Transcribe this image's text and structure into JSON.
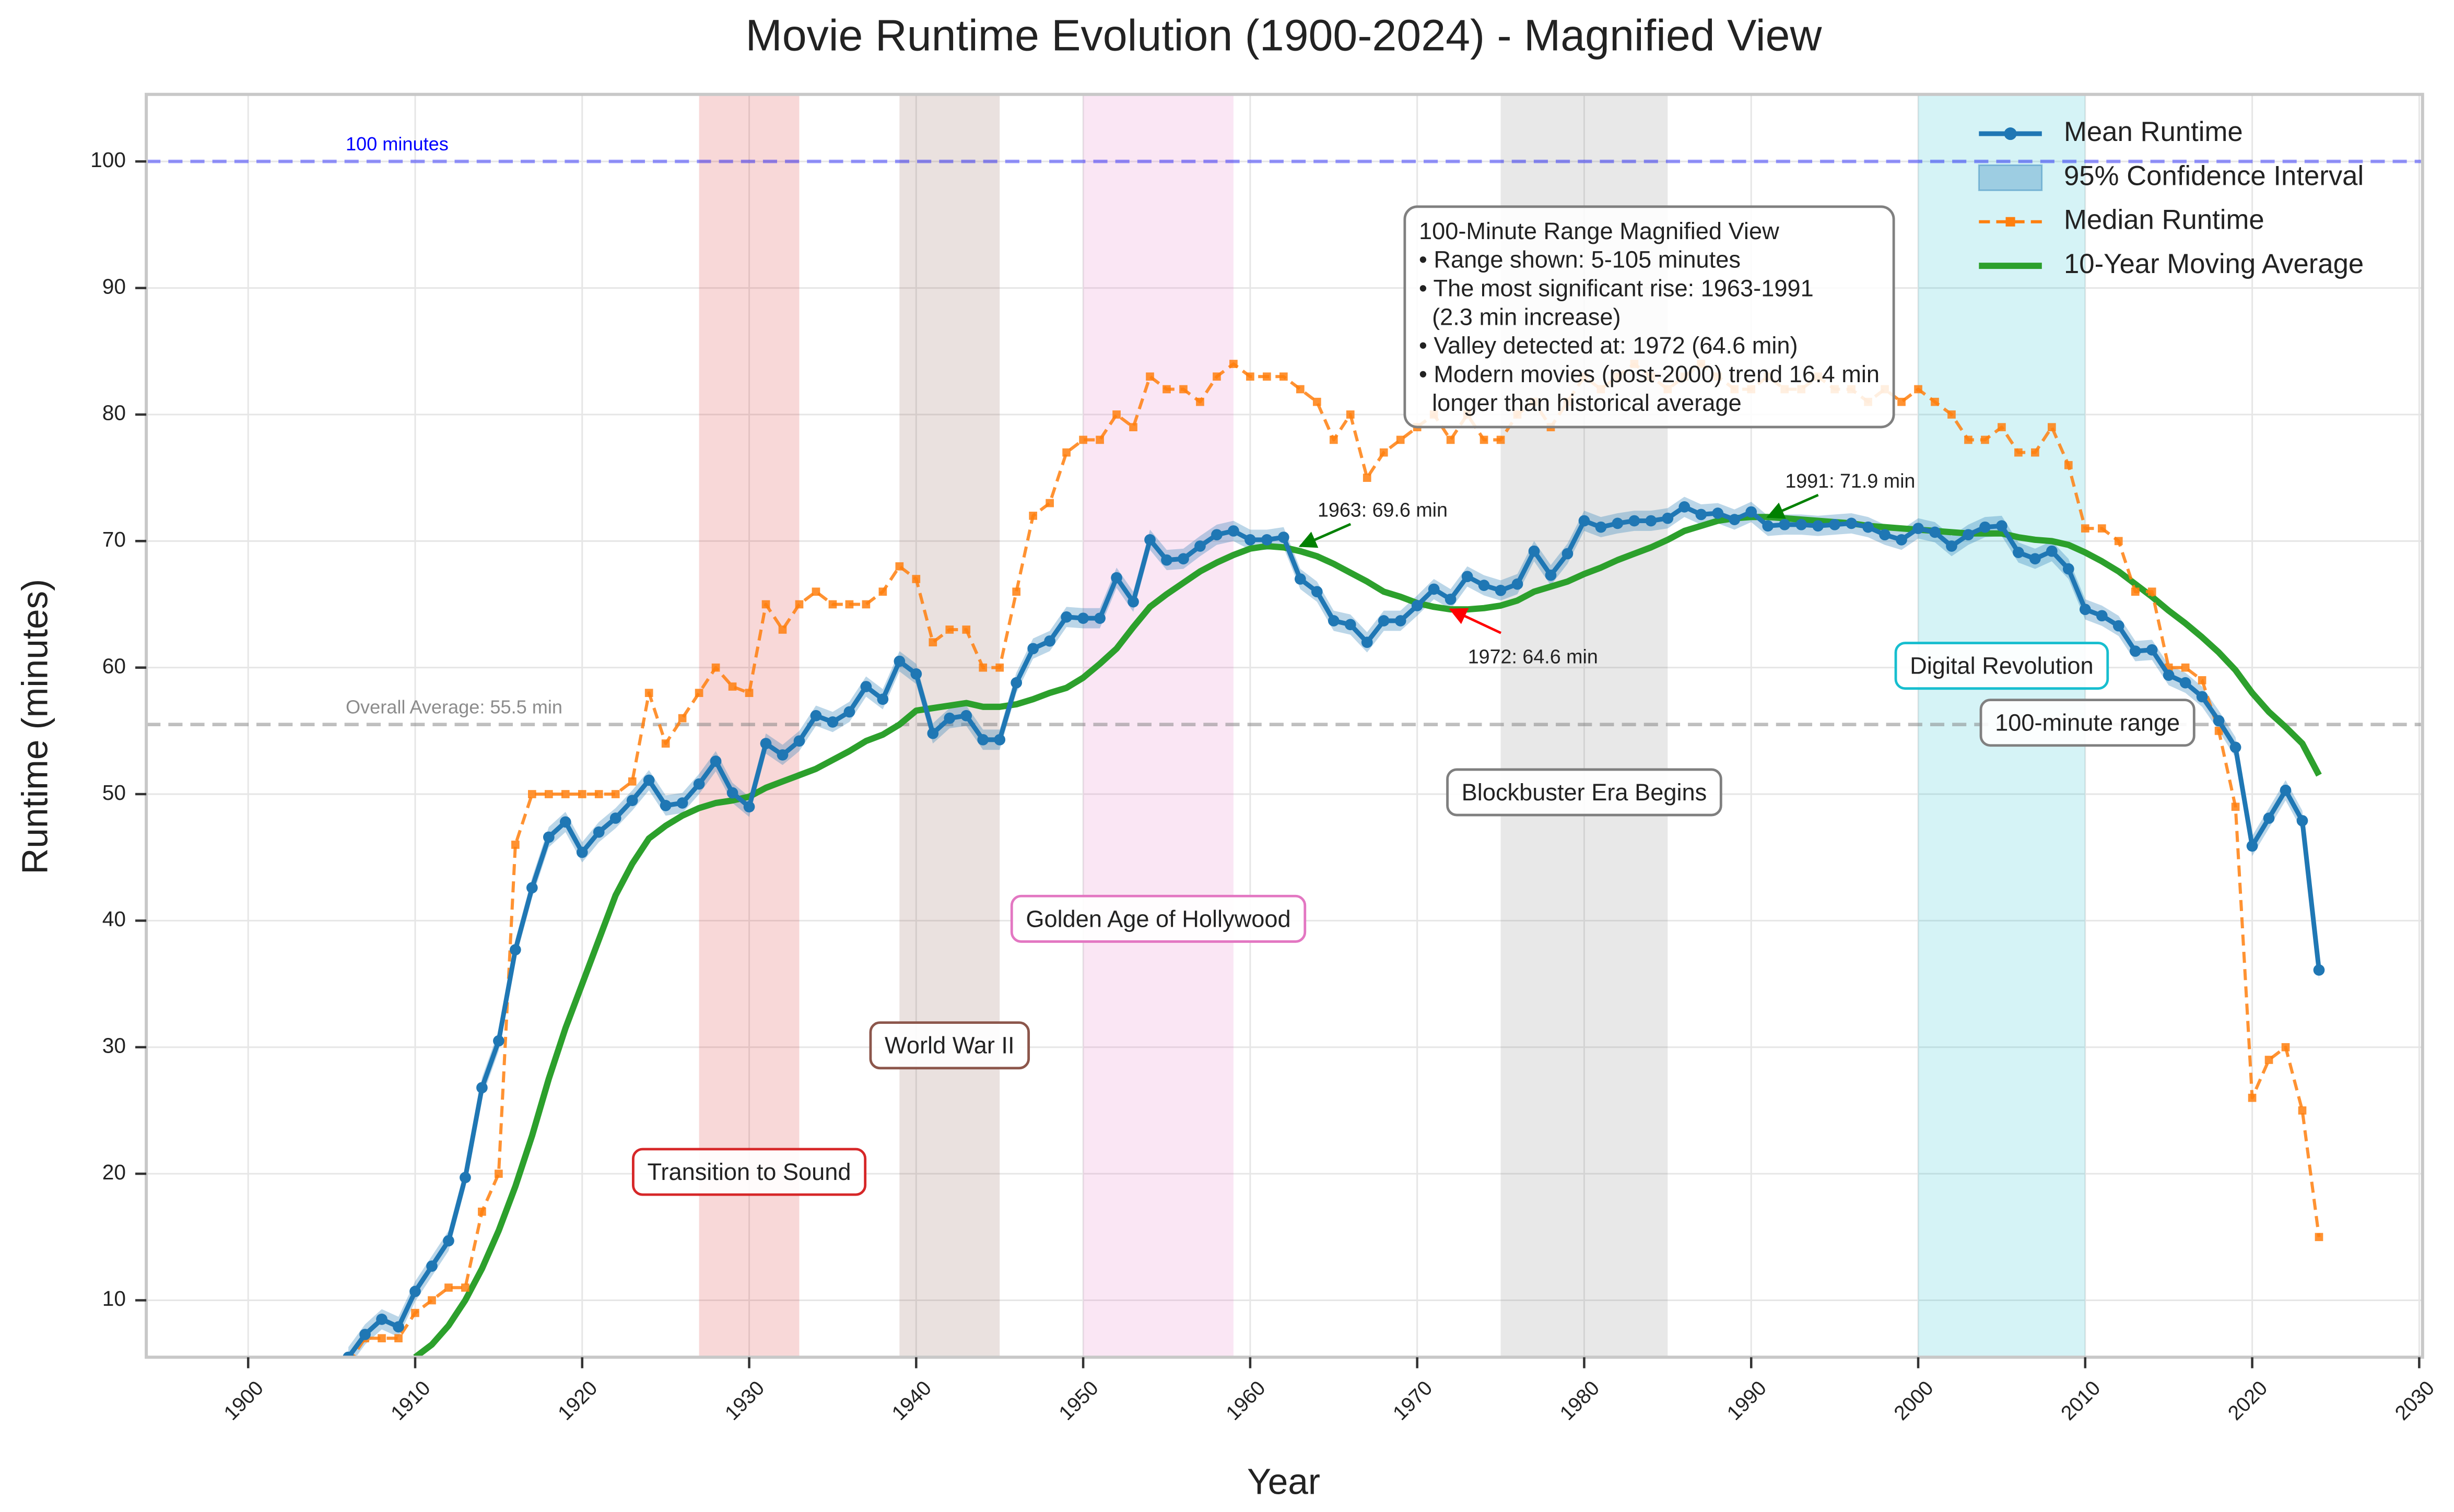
{
  "chart_data": {
    "type": "line",
    "title": "Movie Runtime Evolution (1900-2024) - Magnified View",
    "x_label": "Year",
    "y_label": "Runtime (minutes)",
    "xlim": [
      1893.9,
      2030.2
    ],
    "ylim": [
      5.5,
      105.3
    ],
    "xticks": [
      1900,
      1910,
      1920,
      1930,
      1940,
      1950,
      1960,
      1970,
      1980,
      1990,
      2000,
      2010,
      2020,
      2030
    ],
    "yticks": [
      10,
      20,
      30,
      40,
      50,
      60,
      70,
      80,
      90,
      100
    ],
    "grid": true,
    "legend": "upper right",
    "x": [
      1906,
      1907,
      1908,
      1909,
      1910,
      1911,
      1912,
      1913,
      1914,
      1915,
      1916,
      1917,
      1918,
      1919,
      1920,
      1921,
      1922,
      1923,
      1924,
      1925,
      1926,
      1927,
      1928,
      1929,
      1930,
      1931,
      1932,
      1933,
      1934,
      1935,
      1936,
      1937,
      1938,
      1939,
      1940,
      1941,
      1942,
      1943,
      1944,
      1945,
      1946,
      1947,
      1948,
      1949,
      1950,
      1951,
      1952,
      1953,
      1954,
      1955,
      1956,
      1957,
      1958,
      1959,
      1960,
      1961,
      1962,
      1963,
      1964,
      1965,
      1966,
      1967,
      1968,
      1969,
      1970,
      1971,
      1972,
      1973,
      1974,
      1975,
      1976,
      1977,
      1978,
      1979,
      1980,
      1981,
      1982,
      1983,
      1984,
      1985,
      1986,
      1987,
      1988,
      1989,
      1990,
      1991,
      1992,
      1993,
      1994,
      1995,
      1996,
      1997,
      1998,
      1999,
      2000,
      2001,
      2002,
      2003,
      2004,
      2005,
      2006,
      2007,
      2008,
      2009,
      2010,
      2011,
      2012,
      2013,
      2014,
      2015,
      2016,
      2017,
      2018,
      2019,
      2020,
      2021,
      2022,
      2023,
      2024
    ],
    "series": [
      {
        "name": "Mean Runtime",
        "color": "#1f77b4",
        "style": "line-circle",
        "values": [
          5.5,
          7.3,
          8.5,
          7.9,
          10.7,
          12.7,
          14.7,
          19.7,
          26.8,
          30.5,
          37.7,
          42.6,
          46.6,
          47.8,
          45.4,
          47.0,
          48.1,
          49.5,
          51.1,
          49.1,
          49.3,
          50.8,
          52.6,
          50.1,
          49.0,
          54.0,
          53.1,
          54.2,
          56.2,
          55.7,
          56.5,
          58.5,
          57.5,
          60.5,
          59.5,
          54.8,
          56.0,
          56.2,
          54.3,
          54.3,
          58.8,
          61.5,
          62.1,
          64.0,
          63.9,
          63.9,
          67.1,
          65.2,
          70.1,
          68.5,
          68.6,
          69.6,
          70.5,
          70.8,
          70.1,
          70.1,
          70.3,
          67.0,
          66.0,
          63.7,
          63.4,
          62.0,
          63.7,
          63.7,
          64.9,
          66.2,
          65.4,
          67.2,
          66.5,
          66.1,
          66.6,
          69.2,
          67.3,
          69.0,
          71.6,
          71.1,
          71.4,
          71.6,
          71.6,
          71.8,
          72.7,
          72.1,
          72.2,
          71.7,
          72.3,
          71.2,
          71.3,
          71.3,
          71.2,
          71.3,
          71.4,
          71.1,
          70.5,
          70.1,
          71.0,
          70.7,
          69.6,
          70.5,
          71.1,
          71.2,
          69.1,
          68.6,
          69.2,
          67.8,
          64.6,
          64.1,
          63.3,
          61.3,
          61.4,
          59.4,
          58.8,
          57.7,
          55.8,
          53.7,
          45.9,
          48.1,
          50.3,
          47.9,
          36.1
        ]
      },
      {
        "name": "95% Confidence Interval",
        "color": "#1f77b4",
        "style": "band",
        "values": [
          0.8,
          0.8,
          0.8,
          0.8,
          0.8,
          0.8,
          0.8,
          0.8,
          0.8,
          0.8,
          0.8,
          0.8,
          0.8,
          0.8,
          0.8,
          0.8,
          0.8,
          0.8,
          0.8,
          0.8,
          0.8,
          0.8,
          0.8,
          0.8,
          0.8,
          0.8,
          0.8,
          0.8,
          0.8,
          0.8,
          0.8,
          0.8,
          0.8,
          0.8,
          0.8,
          0.8,
          0.8,
          0.8,
          0.8,
          0.8,
          0.8,
          0.8,
          0.8,
          0.8,
          0.8,
          0.8,
          0.8,
          0.8,
          0.8,
          0.8,
          0.8,
          0.8,
          0.8,
          0.8,
          0.8,
          0.8,
          0.8,
          0.8,
          0.8,
          0.8,
          0.8,
          0.8,
          0.8,
          0.8,
          0.8,
          0.8,
          0.8,
          0.8,
          0.8,
          0.8,
          0.8,
          0.8,
          0.8,
          0.8,
          0.8,
          0.8,
          0.8,
          0.8,
          0.8,
          0.8,
          0.8,
          0.8,
          0.8,
          0.8,
          0.8,
          0.8,
          0.8,
          0.8,
          0.8,
          0.8,
          0.8,
          0.8,
          0.8,
          0.8,
          0.8,
          0.8,
          0.8,
          0.8,
          0.8,
          0.8,
          0.8,
          0.8,
          0.8,
          0.8,
          0.8,
          0.8,
          0.8,
          0.8,
          0.8,
          0.8,
          0.8,
          0.8,
          0.8,
          0.8,
          0.8,
          0.8,
          0.8,
          0.8,
          0.8
        ]
      },
      {
        "name": "Median Runtime",
        "color": "#ff7f0e",
        "style": "dashed-square",
        "values": [
          5,
          7,
          7,
          7,
          9,
          10,
          11,
          11,
          17,
          20,
          46,
          50,
          50,
          50,
          50,
          50,
          50,
          51,
          58,
          54,
          56,
          58,
          60,
          58.5,
          58,
          65,
          63,
          65,
          66,
          65,
          65,
          65,
          66,
          68,
          67,
          62,
          63,
          63,
          60,
          60,
          66,
          72,
          73,
          77,
          78,
          78,
          80,
          79,
          83,
          82,
          82,
          81,
          83,
          84,
          83,
          83,
          83,
          82,
          81,
          78,
          80,
          75,
          77,
          78,
          79,
          80,
          78,
          80,
          78,
          78,
          80,
          81,
          79,
          81,
          83,
          82,
          83,
          84,
          83,
          82,
          83,
          84,
          83,
          82,
          82,
          83,
          82,
          82,
          83,
          82,
          82,
          81,
          82,
          81,
          82,
          81,
          80,
          78,
          78,
          79,
          77,
          77,
          79,
          76,
          71,
          71,
          70,
          66,
          66,
          60,
          60,
          59,
          55,
          49,
          26,
          29,
          30,
          25,
          15
        ]
      },
      {
        "name": "10-Year Moving Average",
        "color": "#2ca02c",
        "style": "line",
        "values": [
          null,
          null,
          null,
          null,
          5.5,
          6.5,
          8,
          10,
          12.5,
          15.5,
          19,
          23,
          27.5,
          31.5,
          35,
          38.5,
          42,
          44.5,
          46.5,
          47.5,
          48.3,
          48.9,
          49.3,
          49.5,
          49.8,
          50.5,
          51,
          51.5,
          52,
          52.7,
          53.4,
          54.2,
          54.7,
          55.5,
          56.6,
          56.8,
          57,
          57.2,
          56.9,
          56.9,
          57.1,
          57.5,
          58,
          58.4,
          59.2,
          60.3,
          61.5,
          63.2,
          64.8,
          65.8,
          66.7,
          67.6,
          68.3,
          68.9,
          69.4,
          69.6,
          69.5,
          69.2,
          68.8,
          68.2,
          67.5,
          66.8,
          66,
          65.6,
          65.1,
          64.8,
          64.6,
          64.6,
          64.7,
          64.9,
          65.3,
          66,
          66.4,
          66.8,
          67.4,
          67.9,
          68.5,
          69,
          69.5,
          70.1,
          70.8,
          71.2,
          71.6,
          71.8,
          71.9,
          71.9,
          71.8,
          71.7,
          71.6,
          71.5,
          71.4,
          71.2,
          71.1,
          71,
          70.9,
          70.8,
          70.7,
          70.6,
          70.6,
          70.6,
          70.3,
          70.1,
          70,
          69.7,
          69.1,
          68.4,
          67.6,
          66.6,
          65.6,
          64.5,
          63.5,
          62.4,
          61.2,
          59.8,
          58,
          56.5,
          55.3,
          54,
          51.5
        ]
      }
    ],
    "spans": [
      {
        "start": 1927,
        "end": 1933,
        "label": "Transition to Sound",
        "color": "#d62728"
      },
      {
        "start": 1939,
        "end": 1945,
        "label": "World War II",
        "color": "#8c564b"
      },
      {
        "start": 1950,
        "end": 1959,
        "label": "Golden Age of Hollywood",
        "color": "#e377c2"
      },
      {
        "start": 1975,
        "end": 1985,
        "label": "Blockbuster Era Begins",
        "color": "#7f7f7f"
      },
      {
        "start": 2000,
        "end": 2010,
        "label": "Digital Revolution",
        "color": "#17becf"
      }
    ],
    "reference_lines": [
      {
        "value": 100,
        "label": "100 minutes",
        "color": "#0000ff"
      },
      {
        "value": 55.5,
        "label": "Overall Average: 55.5 min",
        "color": "#808080"
      }
    ],
    "range_label": "100-minute range",
    "point_annotations": [
      {
        "text": "1963: 69.6 min",
        "x": 1963,
        "y": 69.6,
        "color": "#008000"
      },
      {
        "text": "1991: 71.9 min",
        "x": 1991,
        "y": 71.9,
        "color": "#008000"
      },
      {
        "text": "1972: 64.6 min",
        "x": 1972,
        "y": 64.6,
        "color": "#ff0000"
      }
    ],
    "info_box": [
      "100-Minute Range Magnified View",
      "• Range shown: 5-105 minutes",
      "• The most significant rise: 1963-1991",
      "  (2.3 min increase)",
      "• Valley detected at: 1972 (64.6 min)",
      "• Modern movies (post-2000) trend 16.4 min",
      "  longer than historical average"
    ]
  }
}
